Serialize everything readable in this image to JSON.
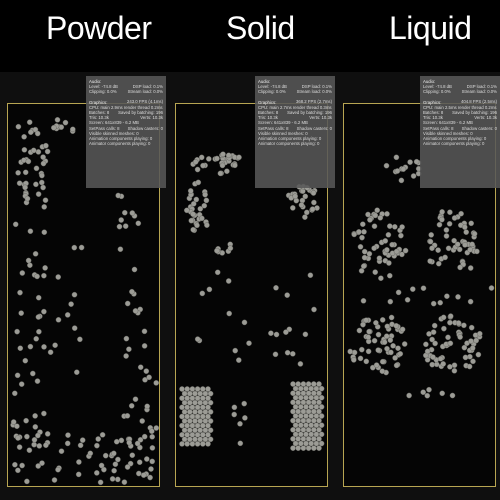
{
  "panels": [
    {
      "title": "Powder",
      "stats": {
        "audio_header": "Audio:",
        "audio_level": "Level: -74.8 dB",
        "audio_dsp": "DSP load: 0.1%",
        "audio_clipping": "Clipping: 0.0%",
        "audio_stream": "Stream load: 0.0%",
        "graphics_header": "Graphics:",
        "graphics_fps": "243.0 FPS (4.1ms)",
        "cpu_line": "CPU: main 2.9ms render thread 0.2ms",
        "batches": "Batches: 8",
        "saved_batching": "Saved by batching: 196",
        "tris": "Tris: 10.3k",
        "verts": "Verts: 10.3k",
        "screen": "Screen: 641x839 - 6.2 MB",
        "setpass": "SetPass calls: 8",
        "shadow_casters": "Shadow casters: 0",
        "skinned": "Visible skinned meshes: 0",
        "animations": "Animation components playing: 0",
        "animator": "Animator components playing: 0"
      }
    },
    {
      "title": "Solid",
      "stats": {
        "audio_header": "Audio:",
        "audio_level": "Level: -74.8 dB",
        "audio_dsp": "DSP load: 0.1%",
        "audio_clipping": "Clipping: 0.0%",
        "audio_stream": "Stream load: 0.0%",
        "graphics_header": "Graphics:",
        "graphics_fps": "368.2 FPS (2.7ms)",
        "cpu_line": "CPU: main 2.7ms render thread 0.3ms",
        "batches": "Batches: 8",
        "saved_batching": "Saved by batching: 196",
        "tris": "Tris: 10.3k",
        "verts": "Verts: 10.3k",
        "screen": "Screen: 641x839 - 6.2 MB",
        "setpass": "SetPass calls: 8",
        "shadow_casters": "Shadow casters: 0",
        "skinned": "Visible skinned meshes: 0",
        "animations": "Animation components playing: 0",
        "animator": "Animator components playing: 0"
      }
    },
    {
      "title": "Liquid",
      "stats": {
        "audio_header": "Audio:",
        "audio_level": "Level: -74.8 dB",
        "audio_dsp": "DSP load: 0.1%",
        "audio_clipping": "Clipping: 0.0%",
        "audio_stream": "Stream load: 0.0%",
        "graphics_header": "Graphics:",
        "graphics_fps": "404.8 FPS (2.5ms)",
        "cpu_line": "CPU: main 2.5ms render thread 0.2ms",
        "batches": "Batches: 8",
        "saved_batching": "Saved by batching: 196",
        "tris": "Tris: 10.3k",
        "verts": "Verts: 10.3k",
        "screen": "Screen: 641x839 - 6.2 MB",
        "setpass": "SetPass calls: 8",
        "shadow_casters": "Shadow casters: 0",
        "skinned": "Visible skinned meshes: 0",
        "animations": "Animation components playing: 0",
        "animator": "Animator components playing: 0"
      }
    }
  ],
  "colors": {
    "background": "#000000",
    "panel_border": "#b7a552",
    "ball_fill": "#9c9c96",
    "stats_bg": "#585858",
    "title_text": "#ffffff"
  }
}
